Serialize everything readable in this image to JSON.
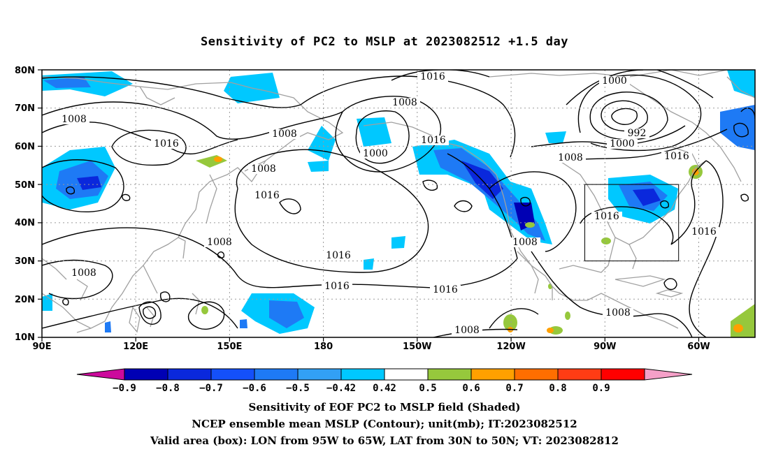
{
  "title": "Sensitivity of PC2 to MSLP at 2023082512 +1.5 day",
  "map": {
    "lat_labels": [
      "80N",
      "70N",
      "60N",
      "50N",
      "40N",
      "30N",
      "20N",
      "10N"
    ],
    "lon_labels": [
      "90E",
      "120E",
      "150E",
      "180",
      "150W",
      "120W",
      "90W",
      "60W"
    ],
    "lon_range_deg_east": [
      90,
      318
    ],
    "lat_range": [
      10,
      80
    ],
    "grid": true,
    "valid_box": {
      "lon_west": -95,
      "lon_east": -65,
      "lat_south": 30,
      "lat_north": 50
    },
    "contour_labels": [
      "1016",
      "1008",
      "1016",
      "1008",
      "1008",
      "1000",
      "1016",
      "1008",
      "1016",
      "1016",
      "1008",
      "1008",
      "1016",
      "1016",
      "1016",
      "1008",
      "1000",
      "992",
      "1000",
      "1008",
      "1016",
      "1016",
      "1008",
      "1008"
    ],
    "contour_interval_mb": 4,
    "colors": {
      "contour": "#000000",
      "coastline": "#a0a0a0",
      "grid": "#9a9a9a"
    }
  },
  "colorbar": {
    "labels": [
      "-0.9",
      "-0.8",
      "-0.7",
      "-0.6",
      "-0.5",
      "-0.42",
      "0.42",
      "0.5",
      "0.6",
      "0.7",
      "0.8",
      "0.9"
    ],
    "colors": [
      "#cc0a9c",
      "#0000b4",
      "#0a28dc",
      "#1450fa",
      "#1e7af5",
      "#32a0f5",
      "#00c8ff",
      "#ffffff",
      "#96c83c",
      "#ffa000",
      "#ff6e00",
      "#ff3c14",
      "#ff0000",
      "#f5a0c8"
    ]
  },
  "captions": [
    "Sensitivity of EOF PC2 to MSLP field (Shaded)",
    "NCEP ensemble mean MSLP (Contour); unit(mb); IT:2023082512",
    "Valid area (box): LON from 95W to 65W, LAT from 30N to 50N; VT: 2023082812"
  ]
}
